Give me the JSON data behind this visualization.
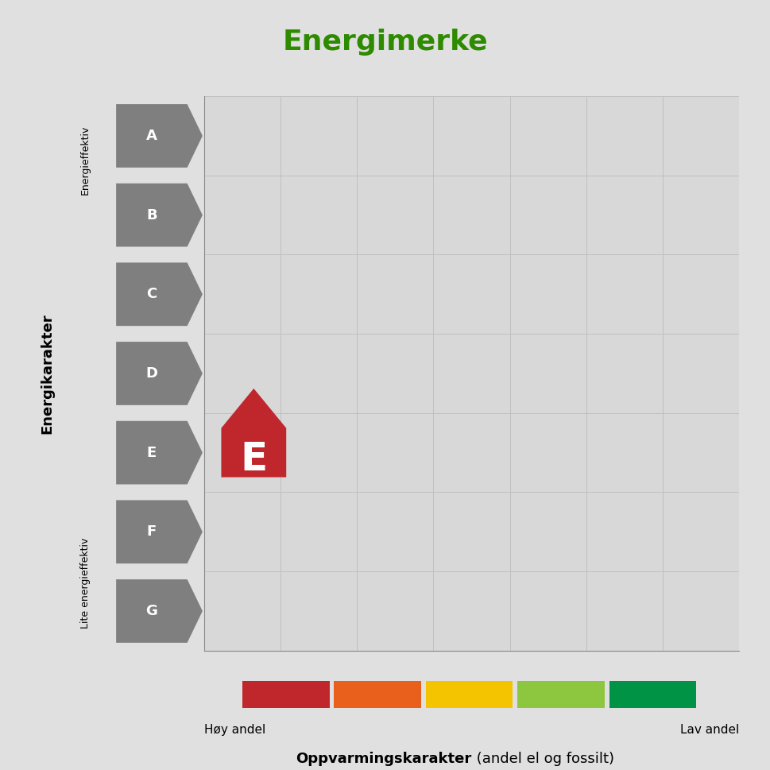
{
  "title": "Energimerke",
  "title_color": "#2e8b00",
  "title_fontsize": 26,
  "background_color": "#e0e0e0",
  "plot_bg_color": "#d8d8d8",
  "energy_labels": [
    "A",
    "B",
    "C",
    "D",
    "E",
    "F",
    "G"
  ],
  "arrow_color": "#7f7f7f",
  "arrow_text_color": "#ffffff",
  "active_label": "E",
  "active_house_color": "#c0272d",
  "ylabel": "Energikarakter",
  "ylabel_fontsize": 13,
  "y_top_label": "Energieffektiv",
  "y_bottom_label": "Lite energieffektiv",
  "xlabel_bold": "Oppvarmingskarakter",
  "xlabel_normal": " (andel el og fossilt)",
  "xlabel_fontsize": 13,
  "x_left_label": "Høy andel",
  "x_right_label": "Lav andel",
  "color_bar_colors": [
    "#c0272d",
    "#e8601c",
    "#f5c400",
    "#8dc63f",
    "#009245"
  ],
  "grid_color": "#c0c0c0",
  "axis_color": "#888888",
  "arrow_fontsize": 13,
  "house_fontsize": 36
}
